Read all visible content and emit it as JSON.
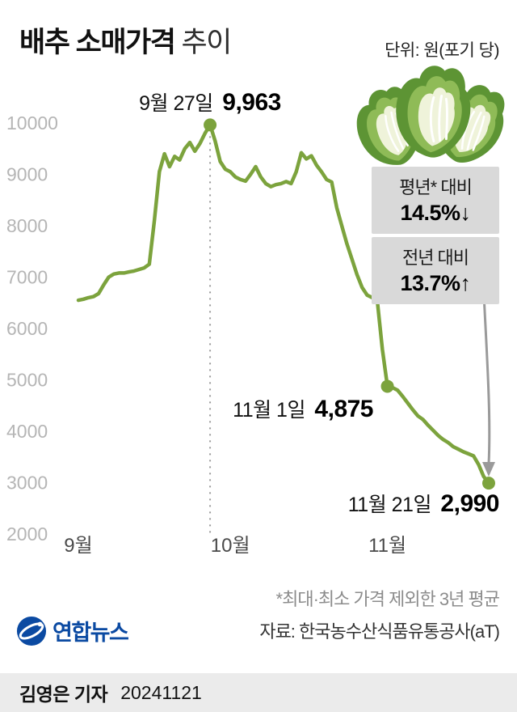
{
  "header": {
    "title_bold": "배추 소매가격",
    "title_light": "추이",
    "unit": "단위: 원(포기 당)"
  },
  "stats_box": {
    "rows": [
      {
        "label": "평년* 대비",
        "value": "14.5%↓"
      },
      {
        "label": "전년 대비",
        "value": "13.7%↑"
      }
    ]
  },
  "footnotes": {
    "note": "*최대·최소 가격 제외한 3년 평균",
    "source": "자료: 한국농수산식품유통공사(aT)"
  },
  "logo": {
    "text": "연합뉴스"
  },
  "byline": {
    "reporter": "김영은 기자",
    "date": "20241121"
  },
  "chart_data": {
    "type": "line",
    "title": "배추 소매가격 추이",
    "unit": "원(포기 당)",
    "line_color": "#7ca33d",
    "marker_color": "#7ca33d",
    "ylim": [
      2000,
      10000
    ],
    "yticks": [
      10000,
      9000,
      8000,
      7000,
      6000,
      5000,
      4000,
      3000,
      2000
    ],
    "x_axis": {
      "note": "daily values, day index 0 = 9월 1일",
      "start_day": 0,
      "end_day": 81,
      "months": [
        {
          "label": "9월",
          "day": 0
        },
        {
          "label": "10월",
          "day": 30
        },
        {
          "label": "11월",
          "day": 61
        }
      ]
    },
    "series": [
      {
        "name": "배추 소매가격(원/포기)",
        "values": [
          6550,
          6570,
          6600,
          6620,
          6680,
          6850,
          7000,
          7060,
          7080,
          7080,
          7100,
          7120,
          7150,
          7180,
          7250,
          8100,
          9050,
          9400,
          9150,
          9350,
          9280,
          9500,
          9620,
          9450,
          9600,
          9800,
          9963,
          9650,
          9250,
          9100,
          9050,
          8950,
          8900,
          8870,
          9000,
          9150,
          8950,
          8820,
          8760,
          8800,
          8820,
          8860,
          8820,
          9050,
          9420,
          9300,
          9360,
          9180,
          9050,
          8900,
          8850,
          8350,
          8000,
          7650,
          7350,
          7050,
          6800,
          6650,
          6600,
          6550,
          5600,
          4875,
          4850,
          4800,
          4680,
          4550,
          4420,
          4300,
          4230,
          4120,
          4020,
          3920,
          3840,
          3780,
          3700,
          3650,
          3600,
          3560,
          3520,
          3350,
          3120,
          2990
        ]
      }
    ],
    "key_points": [
      {
        "day": 26,
        "value": 9963,
        "label_date": "9월 27일",
        "label_value": "9,963",
        "dotted_line": true
      },
      {
        "day": 61,
        "value": 4875,
        "label_date": "11월 1일",
        "label_value": "4,875",
        "dotted_line": false
      },
      {
        "day": 81,
        "value": 2990,
        "label_date": "11월 21일",
        "label_value": "2,990",
        "dotted_line": false
      }
    ]
  }
}
